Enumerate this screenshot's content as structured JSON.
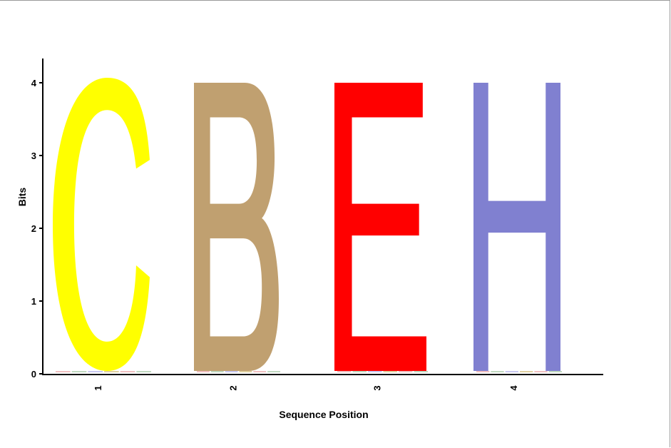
{
  "chart_data": {
    "type": "sequence-logo",
    "xlabel": "Sequence Position",
    "ylabel": "Bits",
    "ylim": [
      0,
      4
    ],
    "y_ticks": [
      "0",
      "1",
      "2",
      "3",
      "4"
    ],
    "positions": [
      "1",
      "2",
      "3",
      "4"
    ],
    "stacks": [
      {
        "position": "1",
        "letter": "C",
        "bits": 4.0,
        "color": "#ffff00"
      },
      {
        "position": "2",
        "letter": "B",
        "bits": 4.0,
        "color": "#c0a070"
      },
      {
        "position": "3",
        "letter": "E",
        "bits": 4.0,
        "color": "#ff0000"
      },
      {
        "position": "4",
        "letter": "H",
        "bits": 4.0,
        "color": "#8080d0"
      }
    ]
  }
}
